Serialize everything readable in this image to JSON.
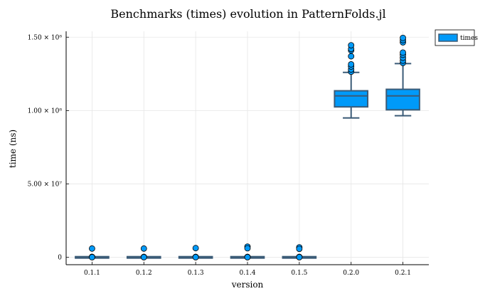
{
  "chart_data": {
    "type": "box",
    "title": "Benchmarks (times) evolution in PatternFolds.jl",
    "xlabel": "version",
    "ylabel": "time (ns)",
    "categories": [
      "0.1.1",
      "0.1.2",
      "0.1.3",
      "0.1.4",
      "0.1.5",
      "0.2.0",
      "0.2.1"
    ],
    "ylim": [
      -5000000,
      154000000
    ],
    "yticks": [
      {
        "value": 0,
        "label": "0"
      },
      {
        "value": 50000000,
        "label": "5.00 × 10⁷"
      },
      {
        "value": 100000000,
        "label": "1.00 × 10⁸"
      },
      {
        "value": 150000000,
        "label": "1.50 × 10⁸"
      }
    ],
    "grid": true,
    "legend_position": "outside-top-right",
    "colors": {
      "fill": "#009af9",
      "stroke": "#3b5b77"
    },
    "series": [
      {
        "name": "times",
        "boxes": [
          {
            "whisker_low": 0,
            "q1": 0,
            "median": 0,
            "q3": 0,
            "whisker_high": 0,
            "outliers": [
              6000000,
              350000,
              200000,
              100000
            ]
          },
          {
            "whisker_low": 0,
            "q1": 0,
            "median": 0,
            "q3": 0,
            "whisker_high": 0,
            "outliers": [
              6000000,
              350000,
              200000,
              100000
            ]
          },
          {
            "whisker_low": 0,
            "q1": 0,
            "median": 0,
            "q3": 0,
            "whisker_high": 0,
            "outliers": [
              6300000,
              350000,
              200000,
              100000
            ]
          },
          {
            "whisker_low": 0,
            "q1": 0,
            "median": 0,
            "q3": 0,
            "whisker_high": 0,
            "outliers": [
              7300000,
              6200000,
              350000,
              200000,
              100000
            ]
          },
          {
            "whisker_low": 0,
            "q1": 0,
            "median": 0,
            "q3": 0,
            "whisker_high": 0,
            "outliers": [
              6800000,
              5800000,
              350000,
              200000,
              100000
            ]
          },
          {
            "whisker_low": 95000000,
            "q1": 103000000,
            "median": 110000000,
            "q3": 113000000,
            "whisker_high": 126000000,
            "outliers": [
              126500000,
              128000000,
              130000000,
              131500000,
              137000000,
              141000000,
              142000000,
              144500000
            ]
          },
          {
            "whisker_low": 96500000,
            "q1": 101000000,
            "median": 110000000,
            "q3": 114000000,
            "whisker_high": 132000000,
            "outliers": [
              132500000,
              134000000,
              136000000,
              138000000,
              139500000,
              146500000,
              148000000,
              149500000
            ]
          }
        ]
      }
    ]
  }
}
